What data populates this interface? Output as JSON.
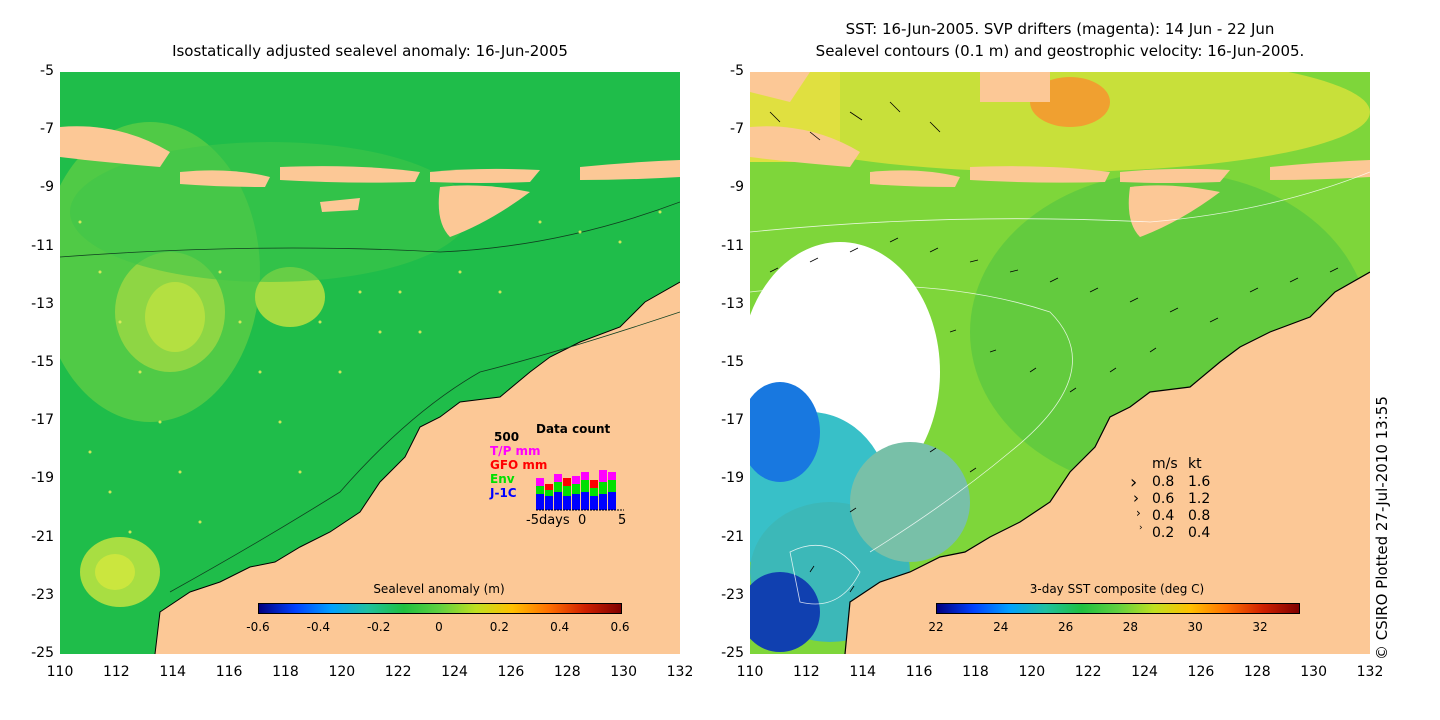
{
  "left_panel": {
    "title": "Isostatically adjusted sealevel anomaly: 16-Jun-2005",
    "colorbar": {
      "label": "Sealevel anomaly (m)",
      "ticks": [
        "-0.6",
        "-0.4",
        "-0.2",
        "0",
        "0.2",
        "0.4",
        "0.6"
      ]
    },
    "data_count": {
      "title": "Data count",
      "max_label": "500",
      "series": [
        {
          "name": "T/P mm",
          "color": "#ff00ff"
        },
        {
          "name": "GFO mm",
          "color": "#ff0000"
        },
        {
          "name": "Env",
          "color": "#00e000"
        },
        {
          "name": "J-1C",
          "color": "#0000ff"
        }
      ],
      "x_labels": [
        "-5days",
        "0",
        "5"
      ]
    }
  },
  "right_panel": {
    "title_line1": "SST: 16-Jun-2005. SVP drifters (magenta): 14 Jun - 22 Jun",
    "title_line2": "Sealevel contours (0.1 m) and geostrophic velocity: 16-Jun-2005.",
    "colorbar": {
      "label": "3-day SST composite (deg C)",
      "ticks": [
        "22",
        "24",
        "26",
        "28",
        "30",
        "32"
      ]
    },
    "velocity_legend": {
      "header_ms": "m/s",
      "header_kt": "kt",
      "rows": [
        {
          "ms": "0.8",
          "kt": "1.6"
        },
        {
          "ms": "0.6",
          "kt": "1.2"
        },
        {
          "ms": "0.4",
          "kt": "0.8"
        },
        {
          "ms": "0.2",
          "kt": "0.4"
        }
      ]
    }
  },
  "axes": {
    "y_ticks": [
      "-5",
      "-7",
      "-9",
      "-11",
      "-13",
      "-15",
      "-17",
      "-19",
      "-21",
      "-23",
      "-25"
    ],
    "x_ticks": [
      "110",
      "112",
      "114",
      "116",
      "118",
      "120",
      "122",
      "124",
      "126",
      "128",
      "130",
      "132"
    ]
  },
  "credit": "© CSIRO Plotted 27-Jul-2010 13:55",
  "colors": {
    "land": "#fcc896",
    "sea_green": "#22c24a",
    "sea_light": "#a9e04a"
  }
}
